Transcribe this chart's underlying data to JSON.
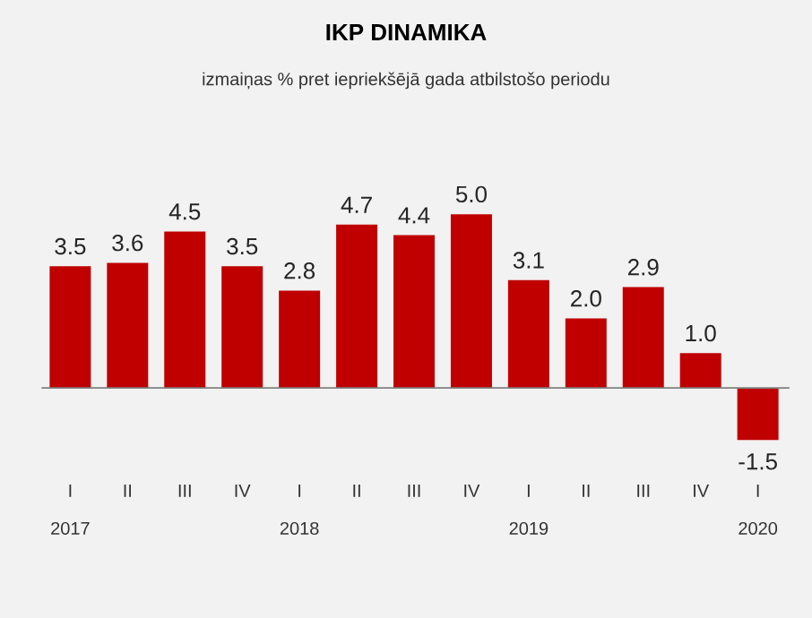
{
  "chart_data": {
    "type": "bar",
    "title": "IKP DINAMIKA",
    "subtitle": "izmaiņas % pret iepriekšējā gada atbilstošo periodu",
    "categories": [
      "I",
      "II",
      "III",
      "IV",
      "I",
      "II",
      "III",
      "IV",
      "I",
      "II",
      "III",
      "IV",
      "I"
    ],
    "values": [
      3.5,
      3.6,
      4.5,
      3.5,
      2.8,
      4.7,
      4.4,
      5.0,
      3.1,
      2.0,
      2.9,
      1.0,
      -1.5
    ],
    "value_labels": [
      "3.5",
      "3.6",
      "4.5",
      "3.5",
      "2.8",
      "4.7",
      "4.4",
      "5.0",
      "3.1",
      "2.0",
      "2.9",
      "1.0",
      "-1.5"
    ],
    "color": "#c00000",
    "annotations": [
      "2017",
      "2018",
      "2019",
      "2020"
    ]
  }
}
